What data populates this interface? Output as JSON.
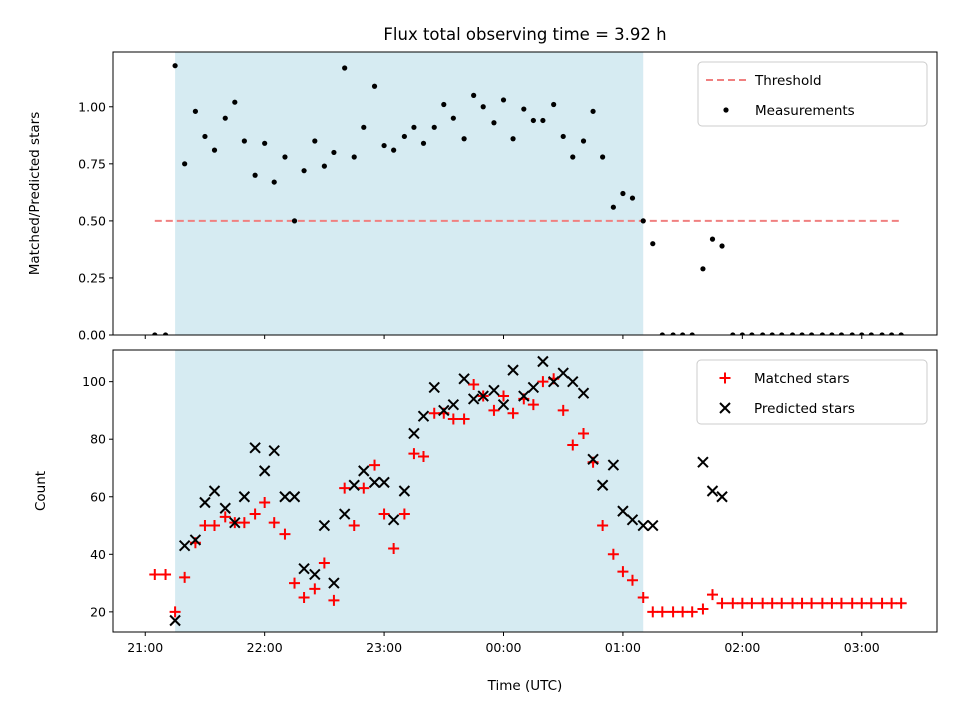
{
  "chart_data": [
    {
      "type": "scatter",
      "title": "Flux total observing time = 3.92 h",
      "xlabel": "",
      "ylabel": "Matched/Predicted stars",
      "xlim": [
        20.73,
        27.63
      ],
      "ylim": [
        0,
        1.24
      ],
      "yticks": [
        0.0,
        0.25,
        0.5,
        0.75,
        1.0
      ],
      "ytick_labels": [
        "0.00",
        "0.25",
        "0.50",
        "0.75",
        "1.00"
      ],
      "xticks": [
        21,
        22,
        23,
        24,
        25,
        26,
        27
      ],
      "xtick_labels": [],
      "shaded_span": [
        21.25,
        25.17
      ],
      "legend_position": "upper right",
      "threshold": {
        "name": "Threshold",
        "value": 0.5,
        "x_range": [
          21.08,
          27.33
        ],
        "color": "#f08080"
      },
      "series": [
        {
          "name": "Measurements",
          "color": "#000000",
          "marker": "dot",
          "points": [
            [
              21.08,
              0.0
            ],
            [
              21.17,
              0.0
            ],
            [
              21.25,
              1.18
            ],
            [
              21.33,
              0.75
            ],
            [
              21.42,
              0.98
            ],
            [
              21.5,
              0.87
            ],
            [
              21.58,
              0.81
            ],
            [
              21.67,
              0.95
            ],
            [
              21.75,
              1.02
            ],
            [
              21.83,
              0.85
            ],
            [
              21.92,
              0.7
            ],
            [
              22.0,
              0.84
            ],
            [
              22.08,
              0.67
            ],
            [
              22.17,
              0.78
            ],
            [
              22.25,
              0.5
            ],
            [
              22.33,
              0.72
            ],
            [
              22.42,
              0.85
            ],
            [
              22.5,
              0.74
            ],
            [
              22.58,
              0.8
            ],
            [
              22.67,
              1.17
            ],
            [
              22.75,
              0.78
            ],
            [
              22.83,
              0.91
            ],
            [
              22.92,
              1.09
            ],
            [
              23.0,
              0.83
            ],
            [
              23.08,
              0.81
            ],
            [
              23.17,
              0.87
            ],
            [
              23.25,
              0.91
            ],
            [
              23.33,
              0.84
            ],
            [
              23.42,
              0.91
            ],
            [
              23.5,
              1.01
            ],
            [
              23.58,
              0.95
            ],
            [
              23.67,
              0.86
            ],
            [
              23.75,
              1.05
            ],
            [
              23.83,
              1.0
            ],
            [
              23.92,
              0.93
            ],
            [
              24.0,
              1.03
            ],
            [
              24.08,
              0.86
            ],
            [
              24.17,
              0.99
            ],
            [
              24.25,
              0.94
            ],
            [
              24.33,
              0.94
            ],
            [
              24.42,
              1.01
            ],
            [
              24.5,
              0.87
            ],
            [
              24.58,
              0.78
            ],
            [
              24.67,
              0.85
            ],
            [
              24.75,
              0.98
            ],
            [
              24.83,
              0.78
            ],
            [
              24.92,
              0.56
            ],
            [
              25.0,
              0.62
            ],
            [
              25.08,
              0.6
            ],
            [
              25.17,
              0.5
            ],
            [
              25.25,
              0.4
            ],
            [
              25.33,
              0.0
            ],
            [
              25.42,
              0.0
            ],
            [
              25.5,
              0.0
            ],
            [
              25.58,
              0.0
            ],
            [
              25.67,
              0.29
            ],
            [
              25.75,
              0.42
            ],
            [
              25.83,
              0.39
            ],
            [
              25.92,
              0.0
            ],
            [
              26.0,
              0.0
            ],
            [
              26.08,
              0.0
            ],
            [
              26.17,
              0.0
            ],
            [
              26.25,
              0.0
            ],
            [
              26.33,
              0.0
            ],
            [
              26.42,
              0.0
            ],
            [
              26.5,
              0.0
            ],
            [
              26.58,
              0.0
            ],
            [
              26.67,
              0.0
            ],
            [
              26.75,
              0.0
            ],
            [
              26.83,
              0.0
            ],
            [
              26.92,
              0.0
            ],
            [
              27.0,
              0.0
            ],
            [
              27.08,
              0.0
            ],
            [
              27.17,
              0.0
            ],
            [
              27.25,
              0.0
            ],
            [
              27.33,
              0.0
            ]
          ]
        }
      ],
      "grid": false
    },
    {
      "type": "scatter",
      "title": "",
      "xlabel": "Time (UTC)",
      "ylabel": "Count",
      "xlim": [
        20.73,
        27.63
      ],
      "ylim": [
        13,
        111
      ],
      "yticks": [
        20,
        40,
        60,
        80,
        100
      ],
      "ytick_labels": [
        "20",
        "40",
        "60",
        "80",
        "100"
      ],
      "xticks": [
        21,
        22,
        23,
        24,
        25,
        26,
        27
      ],
      "xtick_labels": [
        "21:00",
        "22:00",
        "23:00",
        "00:00",
        "01:00",
        "02:00",
        "03:00"
      ],
      "shaded_span": [
        21.25,
        25.17
      ],
      "legend_position": "upper right",
      "series": [
        {
          "name": "Matched stars",
          "color": "#ff0000",
          "marker": "plus",
          "points": [
            [
              21.08,
              33
            ],
            [
              21.17,
              33
            ],
            [
              21.25,
              20
            ],
            [
              21.33,
              32
            ],
            [
              21.42,
              44
            ],
            [
              21.5,
              50
            ],
            [
              21.58,
              50
            ],
            [
              21.67,
              53
            ],
            [
              21.75,
              51
            ],
            [
              21.83,
              51
            ],
            [
              21.92,
              54
            ],
            [
              22.0,
              58
            ],
            [
              22.08,
              51
            ],
            [
              22.17,
              47
            ],
            [
              22.25,
              30
            ],
            [
              22.33,
              25
            ],
            [
              22.42,
              28
            ],
            [
              22.5,
              37
            ],
            [
              22.58,
              24
            ],
            [
              22.67,
              63
            ],
            [
              22.75,
              50
            ],
            [
              22.83,
              63
            ],
            [
              22.92,
              71
            ],
            [
              23.0,
              54
            ],
            [
              23.08,
              42
            ],
            [
              23.17,
              54
            ],
            [
              23.25,
              75
            ],
            [
              23.33,
              74
            ],
            [
              23.42,
              89
            ],
            [
              23.5,
              89
            ],
            [
              23.58,
              87
            ],
            [
              23.67,
              87
            ],
            [
              23.75,
              99
            ],
            [
              23.83,
              95
            ],
            [
              23.92,
              90
            ],
            [
              24.0,
              95
            ],
            [
              24.08,
              89
            ],
            [
              24.17,
              94
            ],
            [
              24.25,
              92
            ],
            [
              24.33,
              100
            ],
            [
              24.42,
              101
            ],
            [
              24.5,
              90
            ],
            [
              24.58,
              78
            ],
            [
              24.67,
              82
            ],
            [
              24.75,
              72
            ],
            [
              24.83,
              50
            ],
            [
              24.92,
              40
            ],
            [
              25.0,
              34
            ],
            [
              25.08,
              31
            ],
            [
              25.17,
              25
            ],
            [
              25.25,
              20
            ],
            [
              25.33,
              20
            ],
            [
              25.42,
              20
            ],
            [
              25.5,
              20
            ],
            [
              25.58,
              20
            ],
            [
              25.67,
              21
            ],
            [
              25.75,
              26
            ],
            [
              25.83,
              23
            ],
            [
              25.92,
              23
            ],
            [
              26.0,
              23
            ],
            [
              26.08,
              23
            ],
            [
              26.17,
              23
            ],
            [
              26.25,
              23
            ],
            [
              26.33,
              23
            ],
            [
              26.42,
              23
            ],
            [
              26.5,
              23
            ],
            [
              26.58,
              23
            ],
            [
              26.67,
              23
            ],
            [
              26.75,
              23
            ],
            [
              26.83,
              23
            ],
            [
              26.92,
              23
            ],
            [
              27.0,
              23
            ],
            [
              27.08,
              23
            ],
            [
              27.17,
              23
            ],
            [
              27.25,
              23
            ],
            [
              27.33,
              23
            ]
          ]
        },
        {
          "name": "Predicted stars",
          "color": "#000000",
          "marker": "x",
          "points": [
            [
              21.25,
              17
            ],
            [
              21.33,
              43
            ],
            [
              21.42,
              45
            ],
            [
              21.5,
              58
            ],
            [
              21.58,
              62
            ],
            [
              21.67,
              56
            ],
            [
              21.75,
              51
            ],
            [
              21.83,
              60
            ],
            [
              21.92,
              77
            ],
            [
              22.0,
              69
            ],
            [
              22.08,
              76
            ],
            [
              22.17,
              60
            ],
            [
              22.25,
              60
            ],
            [
              22.33,
              35
            ],
            [
              22.42,
              33
            ],
            [
              22.5,
              50
            ],
            [
              22.58,
              30
            ],
            [
              22.67,
              54
            ],
            [
              22.75,
              64
            ],
            [
              22.83,
              69
            ],
            [
              22.92,
              65
            ],
            [
              23.0,
              65
            ],
            [
              23.08,
              52
            ],
            [
              23.17,
              62
            ],
            [
              23.25,
              82
            ],
            [
              23.33,
              88
            ],
            [
              23.42,
              98
            ],
            [
              23.5,
              90
            ],
            [
              23.58,
              92
            ],
            [
              23.67,
              101
            ],
            [
              23.75,
              94
            ],
            [
              23.83,
              95
            ],
            [
              23.92,
              97
            ],
            [
              24.0,
              92
            ],
            [
              24.08,
              104
            ],
            [
              24.17,
              95
            ],
            [
              24.25,
              98
            ],
            [
              24.33,
              107
            ],
            [
              24.42,
              100
            ],
            [
              24.5,
              103
            ],
            [
              24.58,
              100
            ],
            [
              24.67,
              96
            ],
            [
              24.75,
              73
            ],
            [
              24.83,
              64
            ],
            [
              24.92,
              71
            ],
            [
              25.0,
              55
            ],
            [
              25.08,
              52
            ],
            [
              25.17,
              50
            ],
            [
              25.25,
              50
            ],
            [
              25.67,
              72
            ],
            [
              25.75,
              62
            ],
            [
              25.83,
              60
            ]
          ]
        }
      ],
      "grid": false
    }
  ],
  "colors": {
    "shade": "#add8e6",
    "threshold": "#f08080",
    "matched": "#ff0000",
    "predicted": "#000000",
    "measurements": "#000000"
  }
}
